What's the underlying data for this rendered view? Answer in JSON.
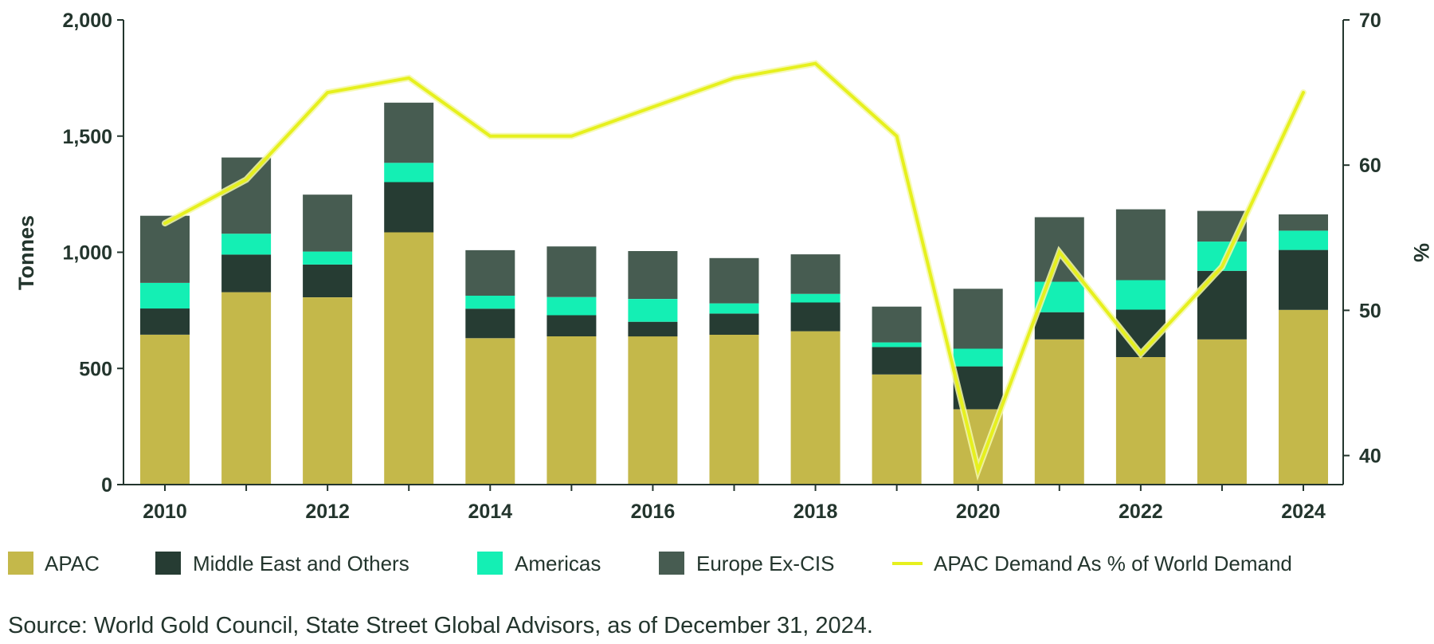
{
  "chart_data": {
    "type": "bar",
    "stacked": true,
    "categories": [
      "2010",
      "2011",
      "2012",
      "2013",
      "2014",
      "2015",
      "2016",
      "2017",
      "2018",
      "2019",
      "2020",
      "2021",
      "2022",
      "2023",
      "2024"
    ],
    "x_tick_labels": [
      "2010",
      "2012",
      "2014",
      "2016",
      "2018",
      "2020",
      "2022",
      "2024"
    ],
    "ylabel": "Tonnes",
    "y2label": "%",
    "ylim": [
      0,
      2000
    ],
    "yticks": [
      0,
      500,
      1000,
      1500,
      2000
    ],
    "ytick_labels": [
      "0",
      "500",
      "1,000",
      "1,500",
      "2,000"
    ],
    "y2lim": [
      38,
      70
    ],
    "y2ticks": [
      40,
      50,
      60,
      70
    ],
    "y2tick_labels": [
      "40",
      "50",
      "60",
      "70"
    ],
    "grid": false,
    "legend_position": "bottom",
    "series": [
      {
        "name": "APAC",
        "color": "#c4b84a",
        "values": [
          645,
          828,
          806,
          1086,
          630,
          638,
          638,
          645,
          660,
          474,
          324,
          625,
          549,
          625,
          752
        ]
      },
      {
        "name": "Middle East and Others",
        "color": "#263c33",
        "values": [
          113,
          162,
          141,
          216,
          127,
          91,
          63,
          91,
          124,
          118,
          185,
          117,
          204,
          295,
          258
        ]
      },
      {
        "name": "Americas",
        "color": "#14efb4",
        "values": [
          110,
          90,
          56,
          83,
          56,
          78,
          98,
          44,
          37,
          20,
          76,
          131,
          127,
          126,
          83
        ]
      },
      {
        "name": "Europe Ex-CIS",
        "color": "#475c51",
        "values": [
          289,
          328,
          245,
          259,
          196,
          218,
          206,
          195,
          170,
          154,
          258,
          278,
          305,
          132,
          70
        ]
      }
    ],
    "line_series": {
      "name": "APAC Demand As % of World Demand",
      "color": "#e6f01e",
      "axis": "right",
      "values": [
        56,
        59,
        65,
        66,
        62,
        62,
        64,
        66,
        67,
        62,
        39,
        54,
        47,
        53,
        65
      ]
    },
    "note": "Source: World Gold Council, State Street Global Advisors, as of December 31, 2024."
  }
}
